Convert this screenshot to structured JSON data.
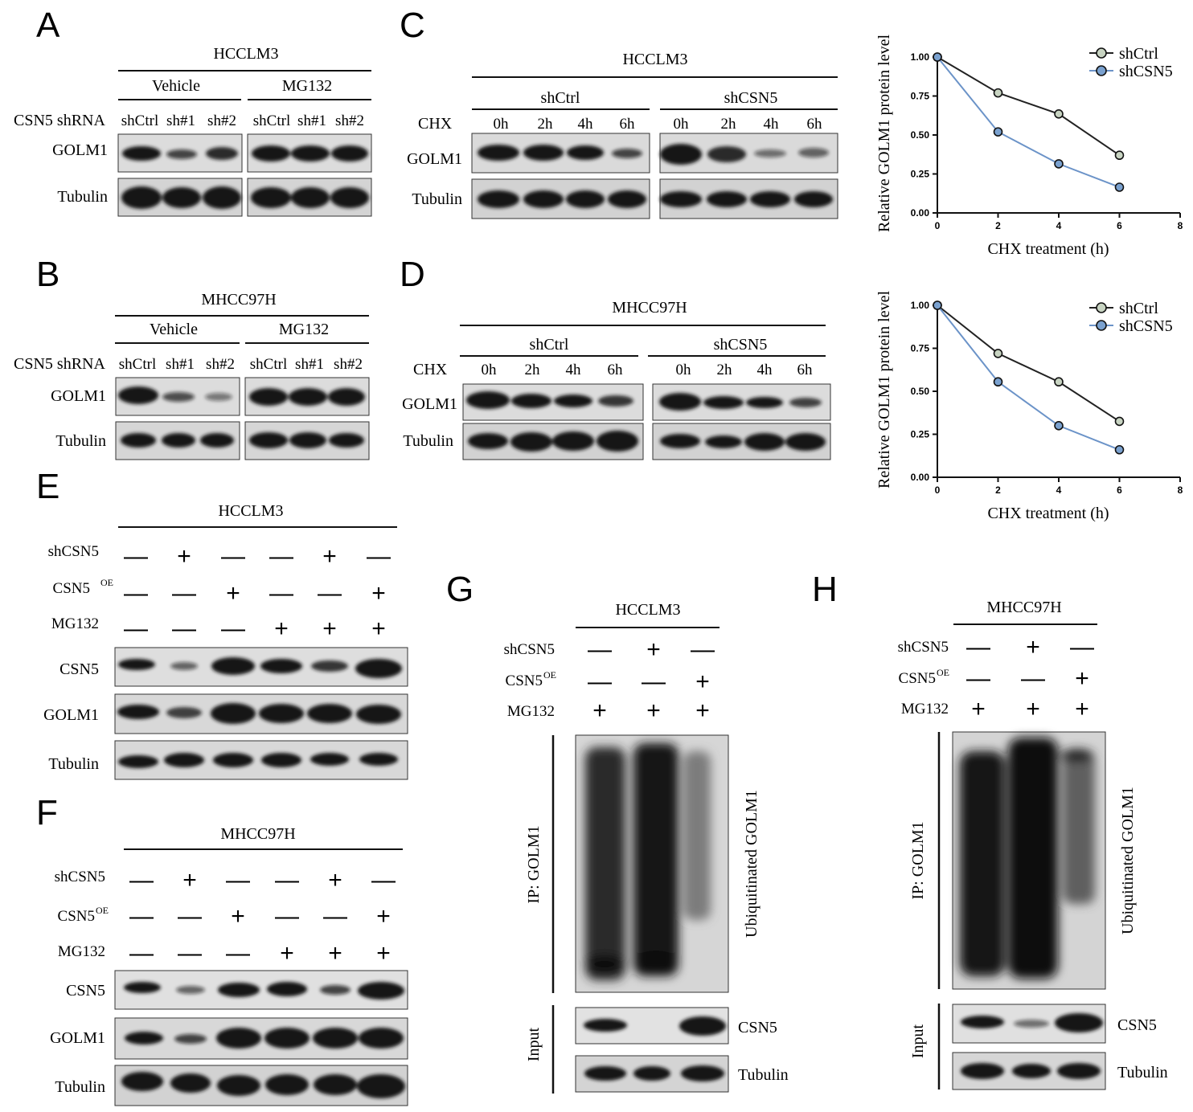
{
  "panels": {
    "A": {
      "label": "A",
      "cell": "HCCLM3",
      "groups": [
        "Vehicle",
        "MG132"
      ],
      "row_header": "CSN5 shRNA",
      "lanes": [
        "shCtrl",
        "sh#1",
        "sh#2",
        "shCtrl",
        "sh#1",
        "sh#2"
      ],
      "blots": [
        "GOLM1",
        "Tubulin"
      ]
    },
    "B": {
      "label": "B",
      "cell": "MHCC97H",
      "groups": [
        "Vehicle",
        "MG132"
      ],
      "row_header": "CSN5 shRNA",
      "lanes": [
        "shCtrl",
        "sh#1",
        "sh#2",
        "shCtrl",
        "sh#1",
        "sh#2"
      ],
      "blots": [
        "GOLM1",
        "Tubulin"
      ]
    },
    "C": {
      "label": "C",
      "cell": "HCCLM3",
      "groups": [
        "shCtrl",
        "shCSN5"
      ],
      "row_header": "CHX",
      "lanes": [
        "0h",
        "2h",
        "4h",
        "6h",
        "0h",
        "2h",
        "4h",
        "6h"
      ],
      "blots": [
        "GOLM1",
        "Tubulin"
      ]
    },
    "D": {
      "label": "D",
      "cell": "MHCC97H",
      "groups": [
        "shCtrl",
        "shCSN5"
      ],
      "row_header": "CHX",
      "lanes": [
        "0h",
        "2h",
        "4h",
        "6h",
        "0h",
        "2h",
        "4h",
        "6h"
      ],
      "blots": [
        "GOLM1",
        "Tubulin"
      ]
    },
    "E": {
      "label": "E",
      "cell": "HCCLM3",
      "treatments": [
        {
          "name": "shCSN5",
          "signs": [
            "—",
            "+",
            "—",
            "—",
            "+",
            "—"
          ]
        },
        {
          "name": "CSN5",
          "sup": "OE",
          "signs": [
            "—",
            "—",
            "+",
            "—",
            "—",
            "+"
          ]
        },
        {
          "name": "MG132",
          "signs": [
            "—",
            "—",
            "—",
            "+",
            "+",
            "+"
          ]
        }
      ],
      "blots": [
        "CSN5",
        "GOLM1",
        "Tubulin"
      ]
    },
    "F": {
      "label": "F",
      "cell": "MHCC97H",
      "treatments": [
        {
          "name": "shCSN5",
          "signs": [
            "—",
            "+",
            "—",
            "—",
            "+",
            "—"
          ]
        },
        {
          "name": "CSN5",
          "sup": "OE",
          "signs": [
            "—",
            "—",
            "+",
            "—",
            "—",
            "+"
          ]
        },
        {
          "name": "MG132",
          "signs": [
            "—",
            "—",
            "—",
            "+",
            "+",
            "+"
          ]
        }
      ],
      "blots": [
        "CSN5",
        "GOLM1",
        "Tubulin"
      ]
    },
    "G": {
      "label": "G",
      "cell": "HCCLM3",
      "treatments": [
        {
          "name": "shCSN5",
          "signs": [
            "—",
            "+",
            "—"
          ]
        },
        {
          "name": "CSN5",
          "sup": "OE",
          "signs": [
            "—",
            "—",
            "+"
          ]
        },
        {
          "name": "MG132",
          "signs": [
            "+",
            "+",
            "+"
          ]
        }
      ],
      "ip_label": "IP: GOLM1",
      "ub_label": "Ubiquitinated GOLM1",
      "input_label": "Input",
      "blots": [
        "CSN5",
        "Tubulin"
      ]
    },
    "H": {
      "label": "H",
      "cell": "MHCC97H",
      "treatments": [
        {
          "name": "shCSN5",
          "signs": [
            "—",
            "+",
            "—"
          ]
        },
        {
          "name": "CSN5",
          "sup": "OE",
          "signs": [
            "—",
            "—",
            "+"
          ]
        },
        {
          "name": "MG132",
          "signs": [
            "+",
            "+",
            "+"
          ]
        }
      ],
      "ip_label": "IP: GOLM1",
      "ub_label": "Ubiquitinated GOLM1",
      "input_label": "Input",
      "blots": [
        "CSN5",
        "Tubulin"
      ]
    }
  },
  "chart_data": [
    {
      "type": "line",
      "xlabel": "CHX treatment (h)",
      "ylabel": "Relative GOLM1 protein level",
      "xlim": [
        0,
        8
      ],
      "ylim": [
        0,
        1.0
      ],
      "xticks": [
        "0",
        "2",
        "4",
        "6",
        "8"
      ],
      "yticks": [
        "0.00",
        "0.25",
        "0.50",
        "0.75",
        "1.00"
      ],
      "x": [
        0,
        2,
        4,
        6
      ],
      "legend": "top-right",
      "series": [
        {
          "name": "shCtrl",
          "values": [
            1.0,
            0.77,
            0.635,
            0.37
          ],
          "color": "#222222",
          "fill": "#c8d4c2"
        },
        {
          "name": "shCSN5",
          "values": [
            1.0,
            0.52,
            0.315,
            0.165
          ],
          "color": "#6b93c8",
          "fill": "#7aa1cf"
        }
      ]
    },
    {
      "type": "line",
      "xlabel": "CHX treatment (h)",
      "ylabel": "Relative GOLM1 protein level",
      "xlim": [
        0,
        8
      ],
      "ylim": [
        0,
        1.0
      ],
      "xticks": [
        "0",
        "2",
        "4",
        "6",
        "8"
      ],
      "yticks": [
        "0.00",
        "0.25",
        "0.50",
        "0.75",
        "1.00"
      ],
      "x": [
        0,
        2,
        4,
        6
      ],
      "legend": "top-right",
      "series": [
        {
          "name": "shCtrl",
          "values": [
            1.0,
            0.72,
            0.555,
            0.325
          ],
          "color": "#222222",
          "fill": "#c8d4c2"
        },
        {
          "name": "shCSN5",
          "values": [
            1.0,
            0.555,
            0.3,
            0.16
          ],
          "color": "#6b93c8",
          "fill": "#7aa1cf"
        }
      ]
    }
  ]
}
